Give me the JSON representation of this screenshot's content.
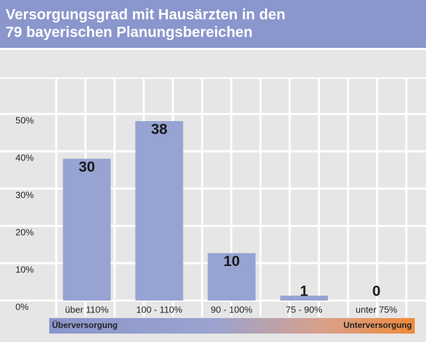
{
  "chart_data": {
    "type": "bar",
    "title": [
      "Versorgungsgrad mit Hausärzten in den",
      "79 bayerischen Planungsbereichen"
    ],
    "categories": [
      "über 110%",
      "100 - 110%",
      "90 - 100%",
      "75 - 90%",
      "unter 75%"
    ],
    "values": [
      38.0,
      48.1,
      12.7,
      1.3,
      0
    ],
    "counts": [
      30,
      38,
      10,
      1,
      0
    ],
    "color": "#96a3d3",
    "ylim": [
      0,
      60
    ],
    "yticks": [
      {
        "value": 0,
        "label": "0%"
      },
      {
        "value": 10,
        "label": "10%"
      },
      {
        "value": 20,
        "label": "20%"
      },
      {
        "value": 30,
        "label": "30%"
      },
      {
        "value": 40,
        "label": "40%"
      },
      {
        "value": 50,
        "label": "50%"
      }
    ],
    "grid": true,
    "scale_labels": [
      "Überversorgung",
      "Unterversorgung"
    ]
  }
}
